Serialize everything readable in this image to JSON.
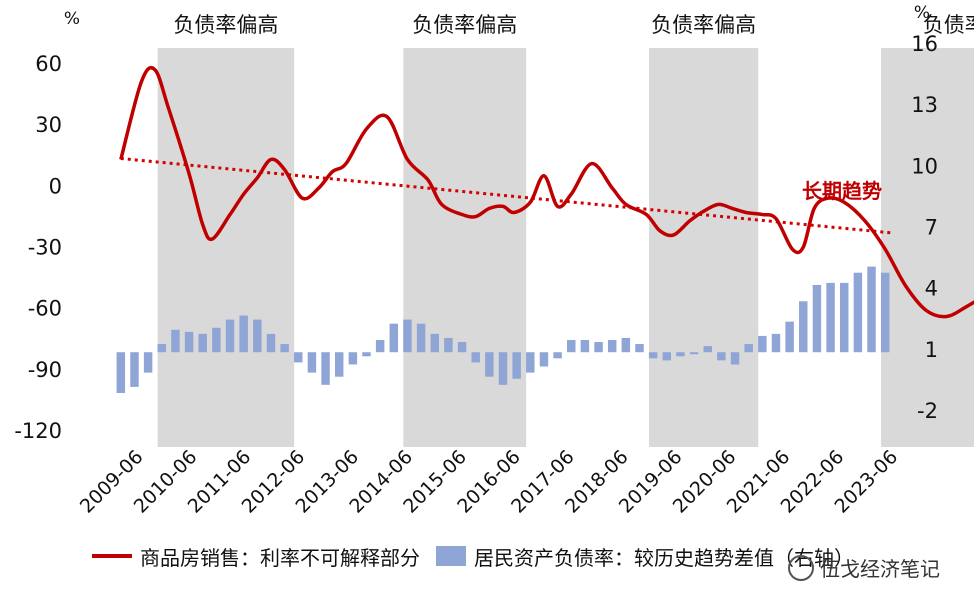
{
  "chart_data": {
    "type": "bar+line",
    "left_unit": "%",
    "right_unit": "%",
    "left_ticks": [
      "60",
      "30",
      "0",
      "-30",
      "-60",
      "-90",
      "-120"
    ],
    "right_ticks": [
      "16",
      "13",
      "10",
      "7",
      "4",
      "1",
      "-2"
    ],
    "left_ylim": [
      -120,
      60
    ],
    "right_ylim": [
      -2,
      16
    ],
    "x_tick_labels": [
      "2009-06",
      "2010-06",
      "2011-06",
      "2012-06",
      "2013-06",
      "2014-06",
      "2015-06",
      "2016-06",
      "2017-06",
      "2018-06",
      "2019-06",
      "2020-06",
      "2021-06",
      "2022-06",
      "2023-06"
    ],
    "bands": [
      {
        "label": "负债率偏高",
        "start": 2.7,
        "end": 12.7
      },
      {
        "label": "负债率偏高",
        "start": 20.7,
        "end": 29.7
      },
      {
        "label": "负债率偏高",
        "start": 38.7,
        "end": 46.7
      },
      {
        "label": "负债率偏高",
        "start": 55.7,
        "end": 69.5
      }
    ],
    "series": [
      {
        "name": "居民资产负债率：较历史趋势差值（右轴）",
        "type": "bar",
        "axis": "right",
        "color": "#8fa5d6",
        "values": [
          -2.0,
          -1.7,
          -1.0,
          0.4,
          1.1,
          1.0,
          0.9,
          1.2,
          1.6,
          1.8,
          1.6,
          0.9,
          0.4,
          -0.5,
          -1.0,
          -1.6,
          -1.2,
          -0.6,
          -0.2,
          0.6,
          1.4,
          1.6,
          1.4,
          0.9,
          0.7,
          0.5,
          -0.5,
          -1.2,
          -1.6,
          -1.3,
          -1.0,
          -0.7,
          -0.3,
          0.6,
          0.6,
          0.5,
          0.6,
          0.7,
          0.4,
          -0.3,
          -0.4,
          -0.2,
          -0.1,
          0.3,
          -0.4,
          -0.6,
          0.4,
          0.8,
          0.9,
          1.5,
          2.5,
          3.3,
          3.4,
          3.4,
          3.9,
          4.2,
          3.9
        ]
      },
      {
        "name": "商品房销售：利率不可解释部分",
        "type": "line",
        "axis": "left",
        "color": "#c00000",
        "values": [
          22,
          60,
          66,
          47,
          15,
          -10,
          -17,
          -5,
          5,
          13,
          22,
          17,
          3,
          8,
          16,
          20,
          37,
          43,
          22,
          12,
          0,
          -5,
          -6,
          -2,
          -1,
          -4,
          1,
          14,
          -1,
          5,
          20,
          8,
          0,
          -5,
          -13,
          -15,
          -8,
          -3,
          0,
          -2,
          -4,
          -5,
          -7,
          -22,
          -21,
          -2,
          3,
          1,
          -8,
          -22,
          -40,
          -52,
          -55,
          -50,
          -44
        ],
        "line_pos": [
          0.0,
          1.5,
          2.5,
          3.5,
          5.0,
          6.0,
          6.7,
          8.0,
          9.0,
          10.0,
          11.0,
          12.0,
          13.3,
          14.5,
          15.5,
          16.5,
          18.0,
          19.5,
          21.0,
          22.5,
          23.5,
          25.0,
          26.0,
          27.0,
          28.0,
          28.8,
          30.0,
          31.0,
          32.0,
          33.0,
          34.5,
          36.0,
          37.0,
          38.5,
          39.5,
          40.5,
          41.7,
          42.8,
          43.8,
          44.8,
          45.8,
          47.0,
          48.0,
          49.2,
          50.0,
          50.8,
          51.8,
          53.0,
          54.5,
          56.0,
          57.5,
          59.0,
          60.5,
          62.0,
          63.5
        ]
      },
      {
        "name": "长期趋势",
        "type": "trend",
        "axis": "left",
        "color": "#d40000",
        "start": 22,
        "end": -13
      }
    ]
  },
  "legend": {
    "line_label": "商品房销售：利率不可解释部分",
    "bar_label": "居民资产负债率：较历史趋势差值（右轴）"
  },
  "trend_label": "长期趋势",
  "watermark": "伍戈经济笔记"
}
